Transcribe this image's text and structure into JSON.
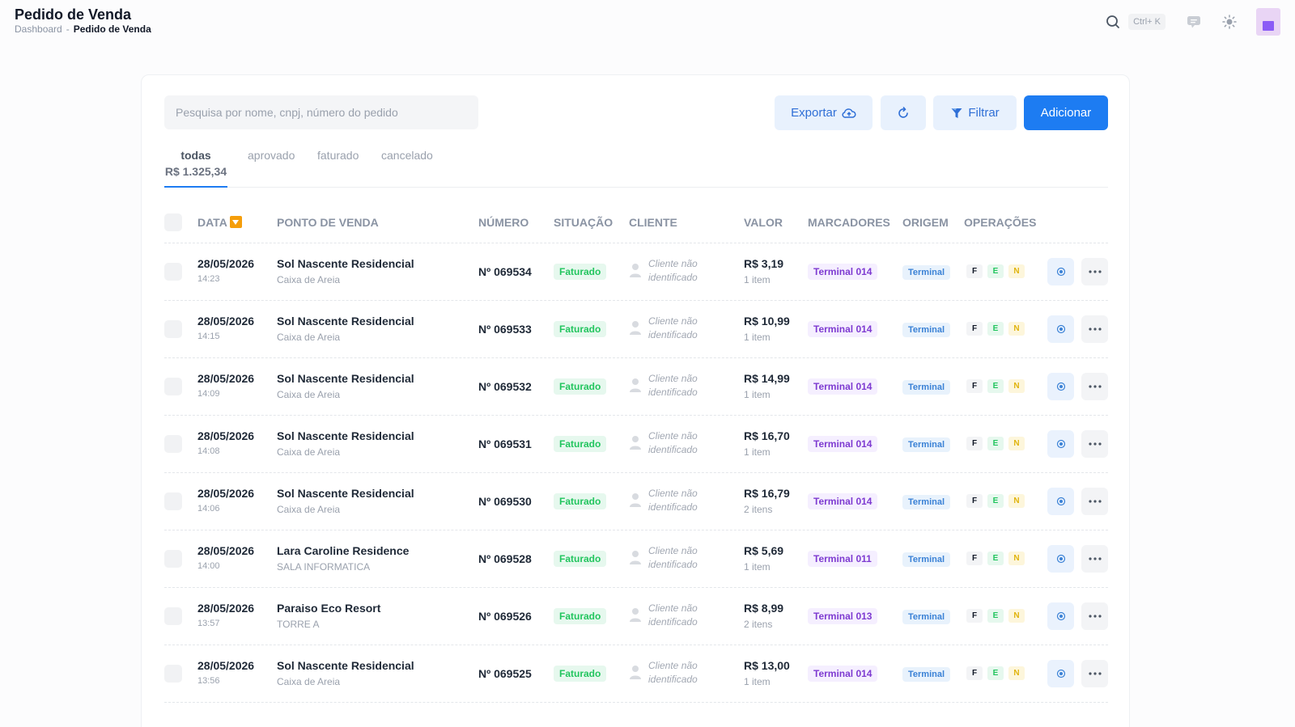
{
  "header": {
    "title": "Pedido de Venda",
    "breadcrumb": {
      "home": "Dashboard",
      "separator": "-",
      "current": "Pedido de Venda"
    },
    "shortcut": "Ctrl+ K"
  },
  "toolbar": {
    "search_placeholder": "Pesquisa por nome, cnpj, número do pedido",
    "export_label": "Exportar",
    "filter_label": "Filtrar",
    "add_label": "Adicionar"
  },
  "tabs": {
    "todas": {
      "label": "todas",
      "total": "R$ 1.325,34"
    },
    "aprovado": "aprovado",
    "faturado": "faturado",
    "cancelado": "cancelado"
  },
  "columns": {
    "data": "DATA",
    "ponto_de_venda": "PONTO DE VENDA",
    "numero": "NÚMERO",
    "situacao": "SITUAÇÃO",
    "cliente": "CLIENTE",
    "valor": "VALOR",
    "marcadores": "MARCADORES",
    "origem": "ORIGEM",
    "operacoes": "OPERAÇÕES"
  },
  "rows": [
    {
      "date": "28/05/2026",
      "time": "14:23",
      "pdv": "Sol Nascente Residencial",
      "pdv_sub": "Caixa de Areia",
      "numero": "Nº 069534",
      "situacao": "Faturado",
      "cliente": "Cliente não identificado",
      "valor": "R$ 3,19",
      "itens": "1 item",
      "marcador": "Terminal 014",
      "origem": "Terminal",
      "ops": [
        "F",
        "E",
        "N"
      ]
    },
    {
      "date": "28/05/2026",
      "time": "14:15",
      "pdv": "Sol Nascente Residencial",
      "pdv_sub": "Caixa de Areia",
      "numero": "Nº 069533",
      "situacao": "Faturado",
      "cliente": "Cliente não identificado",
      "valor": "R$ 10,99",
      "itens": "1 item",
      "marcador": "Terminal 014",
      "origem": "Terminal",
      "ops": [
        "F",
        "E",
        "N"
      ]
    },
    {
      "date": "28/05/2026",
      "time": "14:09",
      "pdv": "Sol Nascente Residencial",
      "pdv_sub": "Caixa de Areia",
      "numero": "Nº 069532",
      "situacao": "Faturado",
      "cliente": "Cliente não identificado",
      "valor": "R$ 14,99",
      "itens": "1 item",
      "marcador": "Terminal 014",
      "origem": "Terminal",
      "ops": [
        "F",
        "E",
        "N"
      ]
    },
    {
      "date": "28/05/2026",
      "time": "14:08",
      "pdv": "Sol Nascente Residencial",
      "pdv_sub": "Caixa de Areia",
      "numero": "Nº 069531",
      "situacao": "Faturado",
      "cliente": "Cliente não identificado",
      "valor": "R$ 16,70",
      "itens": "1 item",
      "marcador": "Terminal 014",
      "origem": "Terminal",
      "ops": [
        "F",
        "E",
        "N"
      ]
    },
    {
      "date": "28/05/2026",
      "time": "14:06",
      "pdv": "Sol Nascente Residencial",
      "pdv_sub": "Caixa de Areia",
      "numero": "Nº 069530",
      "situacao": "Faturado",
      "cliente": "Cliente não identificado",
      "valor": "R$ 16,79",
      "itens": "2 itens",
      "marcador": "Terminal 014",
      "origem": "Terminal",
      "ops": [
        "F",
        "E",
        "N"
      ]
    },
    {
      "date": "28/05/2026",
      "time": "14:00",
      "pdv": "Lara Caroline Residence",
      "pdv_sub": "SALA INFORMATICA",
      "numero": "Nº 069528",
      "situacao": "Faturado",
      "cliente": "Cliente não identificado",
      "valor": "R$ 5,69",
      "itens": "1 item",
      "marcador": "Terminal 011",
      "origem": "Terminal",
      "ops": [
        "F",
        "E",
        "N"
      ]
    },
    {
      "date": "28/05/2026",
      "time": "13:57",
      "pdv": "Paraiso Eco Resort",
      "pdv_sub": "TORRE A",
      "numero": "Nº 069526",
      "situacao": "Faturado",
      "cliente": "Cliente não identificado",
      "valor": "R$ 8,99",
      "itens": "2 itens",
      "marcador": "Terminal 013",
      "origem": "Terminal",
      "ops": [
        "F",
        "E",
        "N"
      ]
    },
    {
      "date": "28/05/2026",
      "time": "13:56",
      "pdv": "Sol Nascente Residencial",
      "pdv_sub": "Caixa de Areia",
      "numero": "Nº 069525",
      "situacao": "Faturado",
      "cliente": "Cliente não identificado",
      "valor": "R$ 13,00",
      "itens": "1 item",
      "marcador": "Terminal 014",
      "origem": "Terminal",
      "ops": [
        "F",
        "E",
        "N"
      ]
    }
  ],
  "icons": {
    "search": "search-icon",
    "chat": "chat-icon",
    "theme": "sun-icon",
    "export": "cloud-upload-icon",
    "refresh": "refresh-icon",
    "filter": "filter-icon",
    "view": "eye-icon",
    "more": "more-horizontal-icon",
    "client": "user-icon",
    "sort": "sort-down-icon"
  },
  "colors": {
    "primary": "#1d7cf2",
    "success": "#22c55e",
    "marker": "#7e3bd1",
    "sort": "#f59e0b"
  }
}
